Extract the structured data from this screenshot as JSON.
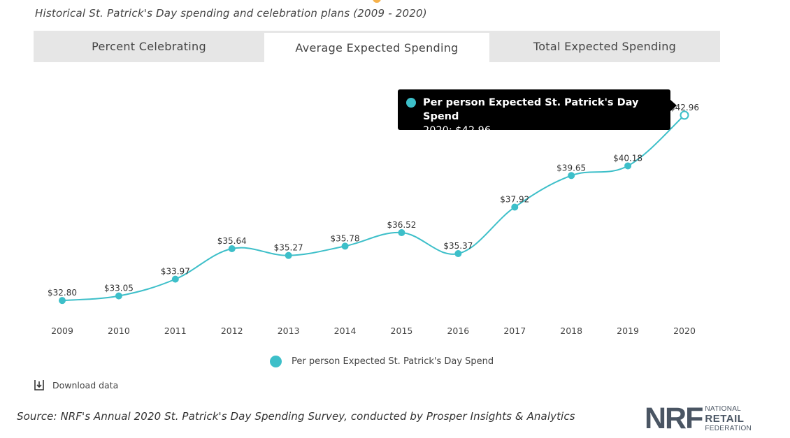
{
  "header": {
    "subtitle": "Historical St. Patrick's Day spending and celebration plans (2009 - 2020)"
  },
  "tabs": [
    {
      "label": "Percent Celebrating",
      "active": false
    },
    {
      "label": "Average Expected Spending",
      "active": true
    },
    {
      "label": "Total Expected Spending",
      "active": false
    }
  ],
  "tooltip": {
    "series": "Per person Expected St. Patrick's Day Spend",
    "value_text": "2020: $42.96"
  },
  "chart_data": {
    "type": "line",
    "title": "Average Expected Spending",
    "x": [
      "2009",
      "2010",
      "2011",
      "2012",
      "2013",
      "2014",
      "2015",
      "2016",
      "2017",
      "2018",
      "2019",
      "2020"
    ],
    "series": [
      {
        "name": "Per person Expected St. Patrick's Day Spend",
        "values": [
          32.8,
          33.05,
          33.97,
          35.64,
          35.27,
          35.78,
          36.52,
          35.37,
          37.92,
          39.65,
          40.18,
          42.96
        ],
        "labels": [
          "$32.80",
          "$33.05",
          "$33.97",
          "$35.64",
          "$35.27",
          "$35.78",
          "$36.52",
          "$35.37",
          "$37.92",
          "$39.65",
          "$40.18",
          "$42.96"
        ],
        "color": "#3dbfc9"
      }
    ],
    "highlighted_index": 11,
    "xlabel": "",
    "ylabel": "",
    "ylim": [
      32.5,
      43.3
    ],
    "grid": false,
    "legend": "bottom"
  },
  "legend": {
    "label": "Per person Expected St. Patrick's Day Spend"
  },
  "download": {
    "label": "Download data"
  },
  "footer": {
    "source": "Source: NRF's Annual 2020 St. Patrick's Day Spending Survey, conducted by Prosper Insights & Analytics"
  },
  "logo": {
    "mark": "NRF",
    "line1": "NATIONAL",
    "line2": "RETAIL",
    "line3": "FEDERATION"
  },
  "colors": {
    "accent": "#3dbfc9",
    "tab_bg": "#e6e6e6",
    "logo": "#4a5563"
  }
}
